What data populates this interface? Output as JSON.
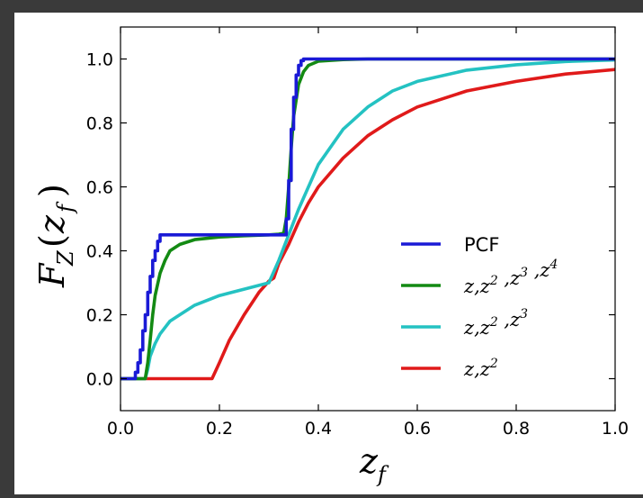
{
  "chart_data": {
    "type": "line",
    "title": "",
    "xlabel": "z_f",
    "ylabel": "F_Z(z_f)",
    "xlim": [
      0.0,
      1.0
    ],
    "ylim": [
      -0.1,
      1.1
    ],
    "xticks": [
      "0.0",
      "0.2",
      "0.4",
      "0.6",
      "0.8",
      "1.0"
    ],
    "yticks": [
      "0.0",
      "0.2",
      "0.4",
      "0.6",
      "0.8",
      "1.0"
    ],
    "grid": false,
    "legend_position": "lower-right",
    "series": [
      {
        "name": "PCF",
        "color": "#1a1ad6",
        "step": true,
        "x": [
          0.0,
          0.025,
          0.03,
          0.035,
          0.04,
          0.045,
          0.05,
          0.055,
          0.06,
          0.065,
          0.07,
          0.075,
          0.08,
          0.33,
          0.335,
          0.34,
          0.345,
          0.35,
          0.355,
          0.36,
          0.365,
          0.37,
          1.0
        ],
        "y": [
          0.0,
          0.0,
          0.02,
          0.05,
          0.09,
          0.15,
          0.2,
          0.27,
          0.32,
          0.37,
          0.4,
          0.43,
          0.45,
          0.45,
          0.5,
          0.62,
          0.78,
          0.88,
          0.95,
          0.98,
          0.995,
          1.0,
          1.0
        ]
      },
      {
        "name": "z,z^2 ,z^3 ,z^4",
        "color": "#138a13",
        "x": [
          0.0,
          0.05,
          0.055,
          0.06,
          0.065,
          0.07,
          0.08,
          0.09,
          0.1,
          0.12,
          0.15,
          0.2,
          0.25,
          0.3,
          0.32,
          0.33,
          0.335,
          0.34,
          0.345,
          0.35,
          0.36,
          0.37,
          0.38,
          0.4,
          0.45,
          0.5,
          0.6,
          1.0
        ],
        "y": [
          0.0,
          0.0,
          0.05,
          0.12,
          0.2,
          0.26,
          0.33,
          0.37,
          0.4,
          0.42,
          0.435,
          0.443,
          0.447,
          0.45,
          0.452,
          0.455,
          0.5,
          0.6,
          0.72,
          0.82,
          0.92,
          0.96,
          0.98,
          0.993,
          0.998,
          1.0,
          1.0,
          1.0
        ]
      },
      {
        "name": "z,z^2 ,z^3",
        "color": "#24c2c2",
        "x": [
          0.0,
          0.05,
          0.055,
          0.06,
          0.07,
          0.08,
          0.1,
          0.12,
          0.15,
          0.2,
          0.25,
          0.3,
          0.32,
          0.34,
          0.36,
          0.38,
          0.4,
          0.45,
          0.5,
          0.55,
          0.6,
          0.7,
          0.8,
          0.9,
          1.0
        ],
        "y": [
          0.0,
          0.0,
          0.03,
          0.07,
          0.11,
          0.14,
          0.18,
          0.2,
          0.23,
          0.26,
          0.28,
          0.3,
          0.37,
          0.45,
          0.53,
          0.6,
          0.67,
          0.78,
          0.85,
          0.9,
          0.93,
          0.965,
          0.982,
          0.992,
          0.997
        ]
      },
      {
        "name": "z,z^2",
        "color": "#e01a1a",
        "x": [
          0.0,
          0.185,
          0.2,
          0.22,
          0.25,
          0.28,
          0.3,
          0.31,
          0.32,
          0.34,
          0.36,
          0.38,
          0.4,
          0.45,
          0.5,
          0.55,
          0.6,
          0.7,
          0.8,
          0.9,
          1.0
        ],
        "y": [
          0.0,
          0.0,
          0.05,
          0.12,
          0.2,
          0.27,
          0.305,
          0.315,
          0.36,
          0.42,
          0.49,
          0.55,
          0.6,
          0.69,
          0.76,
          0.81,
          0.85,
          0.9,
          0.93,
          0.953,
          0.967
        ]
      }
    ]
  },
  "labels": {
    "xlabel_main": "z",
    "xlabel_sub": "f",
    "ylabel_F": "F",
    "ylabel_Z": "Z",
    "ylabel_open": "(",
    "ylabel_z": "z",
    "ylabel_f": "f",
    "ylabel_close": ")"
  }
}
